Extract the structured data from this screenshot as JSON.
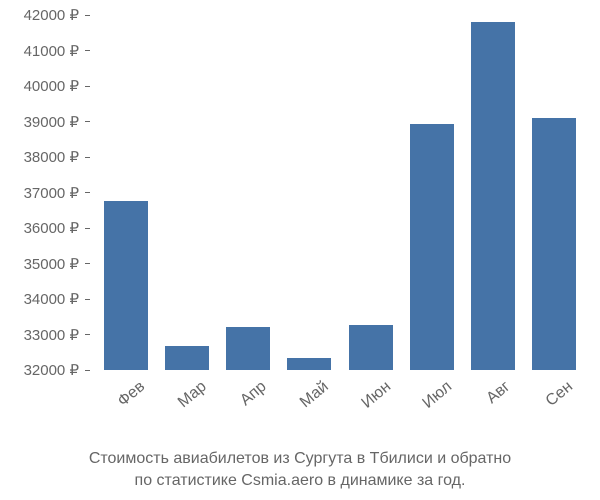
{
  "chart": {
    "type": "bar",
    "background_color": "#ffffff",
    "bar_color": "#4573a7",
    "axis_text_color": "#666666",
    "axis_fontsize": 15,
    "y": {
      "min": 32000,
      "max": 42000,
      "tick_step": 1000,
      "currency_suffix": " ₽",
      "ticks": [
        32000,
        33000,
        34000,
        35000,
        36000,
        37000,
        38000,
        39000,
        40000,
        41000,
        42000
      ]
    },
    "x": {
      "label_rotation_deg": -40,
      "fontsize": 16
    },
    "categories": [
      "Фев",
      "Мар",
      "Апр",
      "Май",
      "Июн",
      "Июл",
      "Авг",
      "Сен"
    ],
    "values": [
      36750,
      32680,
      33200,
      32350,
      33280,
      38920,
      41800,
      39100
    ],
    "bar_width_ratio": 0.72
  },
  "caption": {
    "line1": "Стоимость авиабилетов из Сургута в Тбилиси и обратно",
    "line2": "по статистике Csmia.aero в динамике за год.",
    "fontsize": 16,
    "color": "#666666"
  }
}
